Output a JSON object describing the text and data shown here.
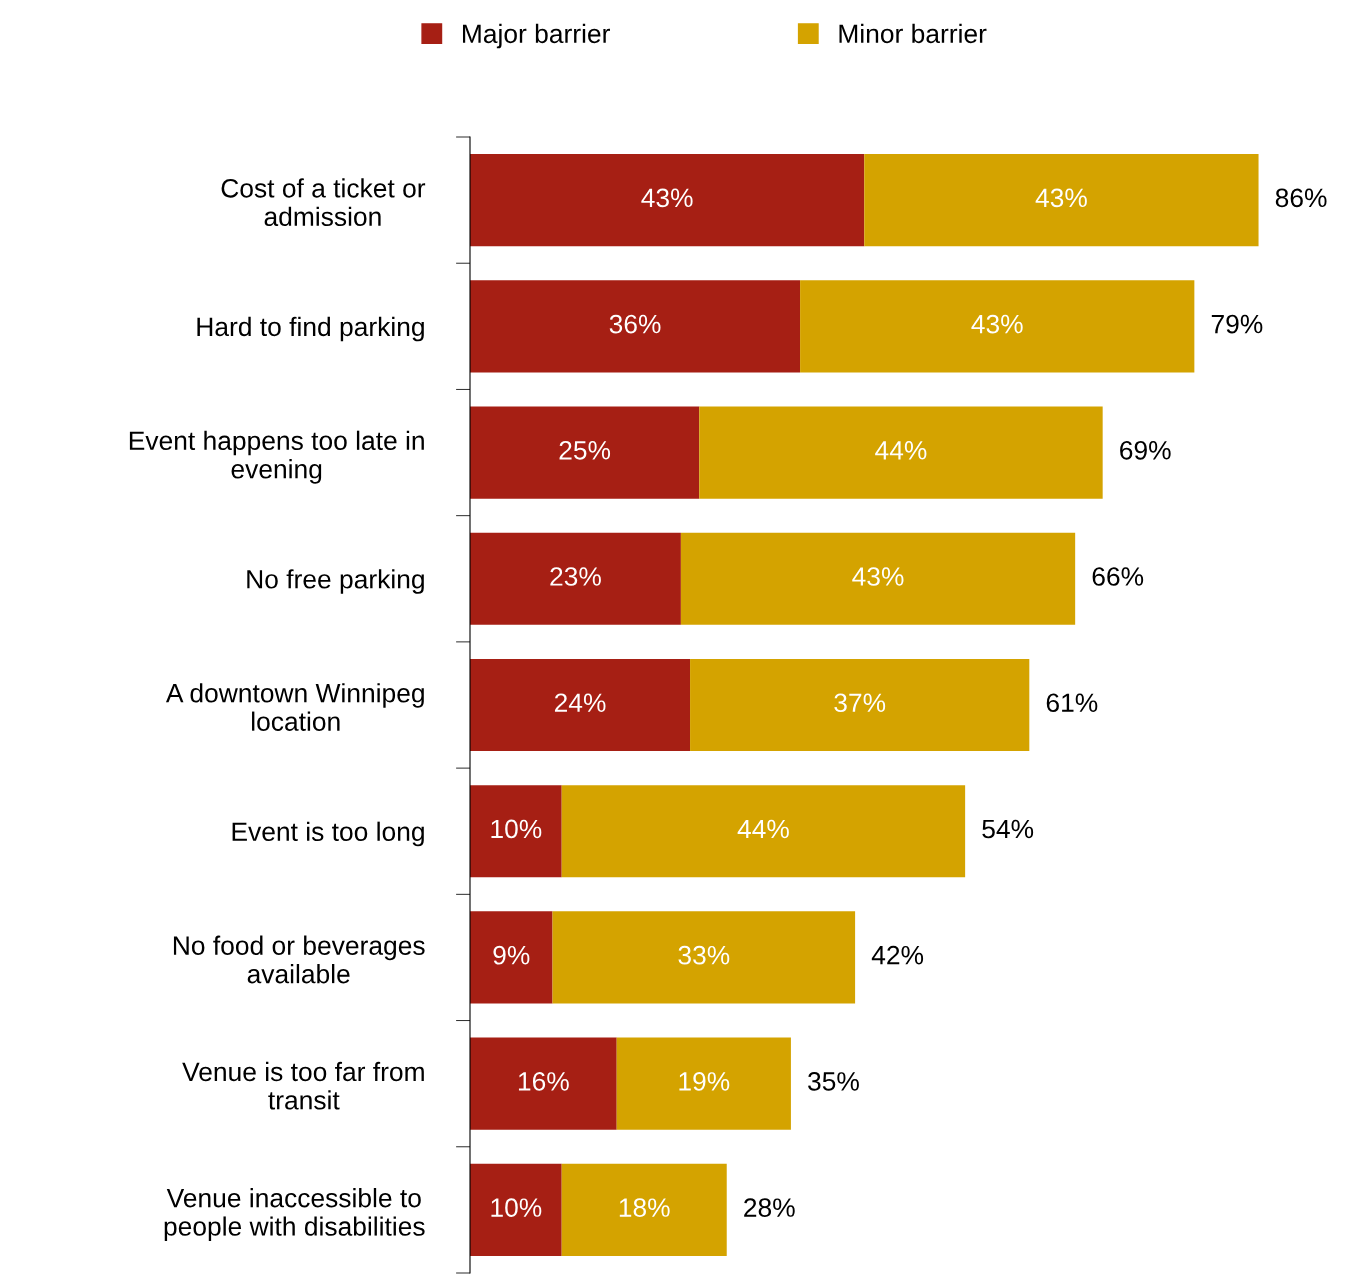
{
  "chart_data": {
    "type": "bar",
    "orientation": "horizontal",
    "stacked": true,
    "legend": "top",
    "categories": [
      "Cost of a ticket or\nadmission",
      "Hard to find parking",
      "Event happens too late in\nevening",
      "No free parking",
      "A downtown Winnipeg\nlocation",
      "Event is too long",
      "No food or beverages\navailable",
      "Venue is too far from\ntransit",
      "Venue inaccessible to\npeople with disabilities"
    ],
    "series": [
      {
        "name": "Major barrier",
        "color": "#a61f14",
        "values": [
          43,
          36,
          25,
          23,
          24,
          10,
          9,
          16,
          10
        ],
        "value_labels": [
          "43%",
          "36%",
          "25%",
          "23%",
          "24%",
          "10%",
          "9%",
          "16%",
          "10%"
        ]
      },
      {
        "name": "Minor barrier",
        "color": "#d4a300",
        "values": [
          43,
          43,
          44,
          43,
          37,
          44,
          33,
          19,
          18
        ],
        "value_labels": [
          "43%",
          "43%",
          "44%",
          "43%",
          "37%",
          "44%",
          "33%",
          "19%",
          "18%"
        ]
      }
    ],
    "totals": [
      "86%",
      "79%",
      "69%",
      "66%",
      "61%",
      "54%",
      "42%",
      "35%",
      "28%"
    ]
  }
}
